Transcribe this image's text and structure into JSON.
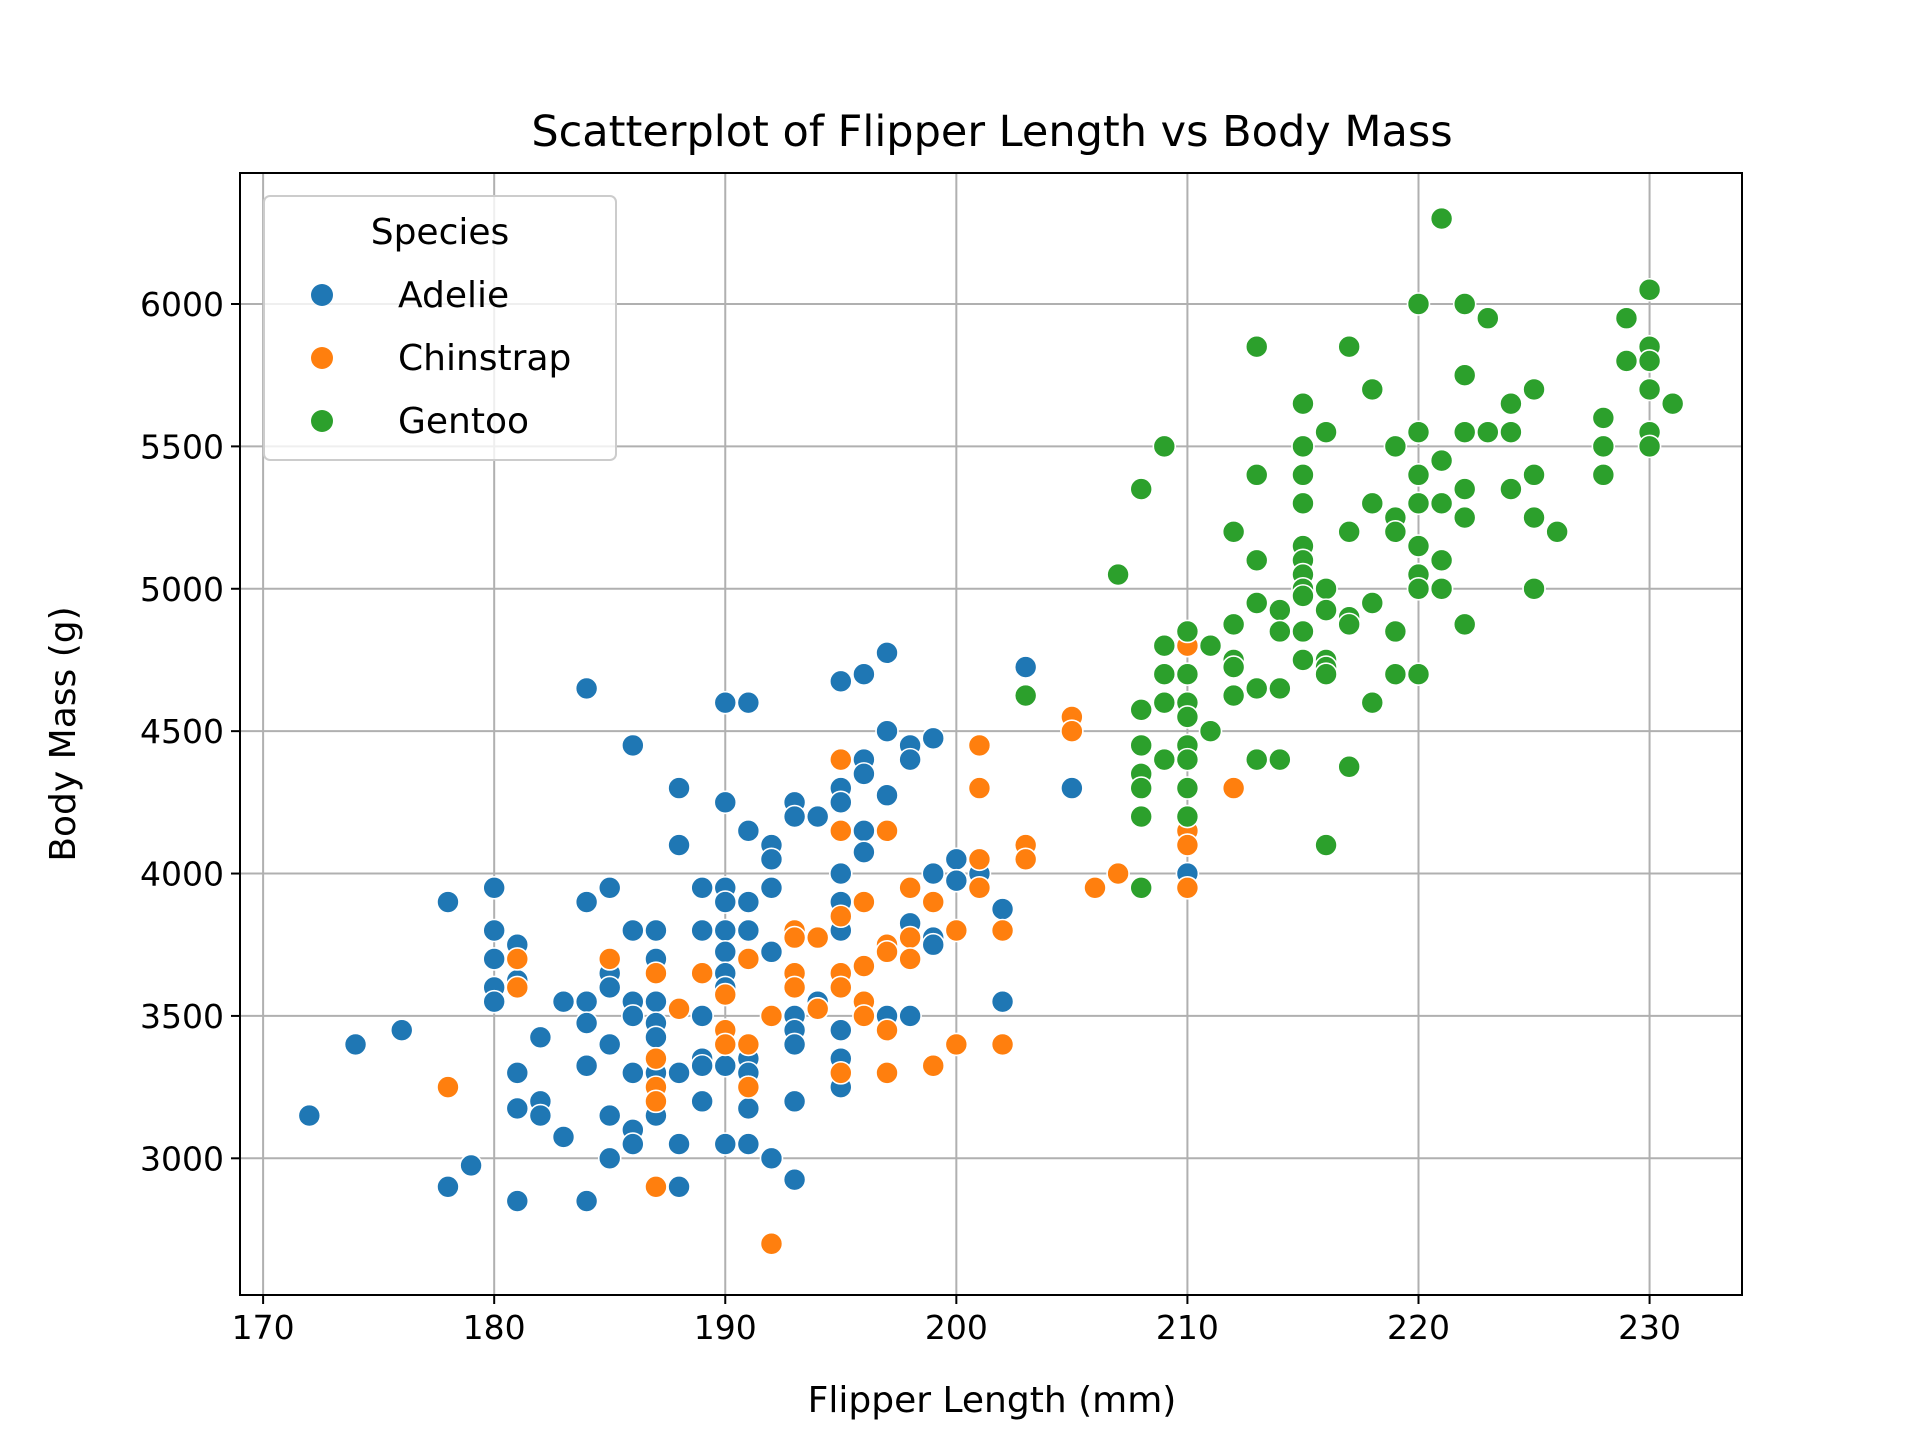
{
  "chart_data": {
    "type": "scatter",
    "title": "Scatterplot of Flipper Length vs Body Mass",
    "xlabel": "Flipper Length (mm)",
    "ylabel": "Body Mass (g)",
    "xlim": [
      169,
      234
    ],
    "ylim": [
      2520,
      6460
    ],
    "xticks": [
      170,
      180,
      190,
      200,
      210,
      220,
      230
    ],
    "yticks": [
      3000,
      3500,
      4000,
      4500,
      5000,
      5500,
      6000
    ],
    "xtick_labels": [
      "170",
      "180",
      "190",
      "200",
      "210",
      "220",
      "230"
    ],
    "ytick_labels": [
      "3000",
      "3500",
      "4000",
      "4500",
      "5000",
      "5500",
      "6000"
    ],
    "grid": true,
    "legend": {
      "title": "Species",
      "placement": "top-left"
    },
    "series": [
      {
        "name": "Adelie",
        "color": "#1f77b4",
        "points": [
          [
            172,
            3150
          ],
          [
            174,
            3400
          ],
          [
            176,
            3450
          ],
          [
            178,
            3900
          ],
          [
            178,
            2900
          ],
          [
            179,
            2975
          ],
          [
            180,
            3950
          ],
          [
            180,
            3800
          ],
          [
            180,
            3700
          ],
          [
            180,
            3600
          ],
          [
            180,
            3550
          ],
          [
            181,
            3750
          ],
          [
            181,
            3625
          ],
          [
            181,
            3300
          ],
          [
            181,
            3175
          ],
          [
            181,
            2850
          ],
          [
            182,
            3425
          ],
          [
            182,
            3200
          ],
          [
            182,
            3150
          ],
          [
            183,
            3550
          ],
          [
            183,
            3075
          ],
          [
            184,
            4650
          ],
          [
            184,
            3900
          ],
          [
            184,
            3550
          ],
          [
            184,
            3475
          ],
          [
            184,
            3325
          ],
          [
            184,
            2850
          ],
          [
            185,
            3950
          ],
          [
            185,
            3650
          ],
          [
            185,
            3600
          ],
          [
            185,
            3400
          ],
          [
            185,
            3150
          ],
          [
            185,
            3000
          ],
          [
            186,
            4450
          ],
          [
            186,
            3800
          ],
          [
            186,
            3550
          ],
          [
            186,
            3500
          ],
          [
            186,
            3300
          ],
          [
            186,
            3100
          ],
          [
            186,
            3050
          ],
          [
            187,
            3800
          ],
          [
            187,
            3700
          ],
          [
            187,
            3550
          ],
          [
            187,
            3475
          ],
          [
            187,
            3425
          ],
          [
            187,
            3300
          ],
          [
            187,
            3150
          ],
          [
            188,
            4300
          ],
          [
            188,
            4100
          ],
          [
            188,
            3300
          ],
          [
            188,
            3050
          ],
          [
            188,
            2900
          ],
          [
            189,
            3950
          ],
          [
            189,
            3800
          ],
          [
            189,
            3500
          ],
          [
            189,
            3350
          ],
          [
            189,
            3325
          ],
          [
            189,
            3200
          ],
          [
            190,
            4600
          ],
          [
            190,
            4250
          ],
          [
            190,
            3950
          ],
          [
            190,
            3900
          ],
          [
            190,
            3800
          ],
          [
            190,
            3725
          ],
          [
            190,
            3650
          ],
          [
            190,
            3600
          ],
          [
            190,
            3450
          ],
          [
            190,
            3325
          ],
          [
            190,
            3050
          ],
          [
            191,
            4600
          ],
          [
            191,
            4150
          ],
          [
            191,
            3900
          ],
          [
            191,
            3800
          ],
          [
            191,
            3700
          ],
          [
            191,
            3350
          ],
          [
            191,
            3300
          ],
          [
            191,
            3250
          ],
          [
            191,
            3175
          ],
          [
            191,
            3050
          ],
          [
            192,
            4100
          ],
          [
            192,
            4050
          ],
          [
            192,
            3950
          ],
          [
            192,
            3725
          ],
          [
            192,
            3000
          ],
          [
            193,
            4250
          ],
          [
            193,
            4200
          ],
          [
            193,
            3775
          ],
          [
            193,
            3500
          ],
          [
            193,
            3450
          ],
          [
            193,
            3400
          ],
          [
            193,
            3200
          ],
          [
            193,
            2925
          ],
          [
            194,
            4200
          ],
          [
            194,
            3550
          ],
          [
            194,
            3525
          ],
          [
            195,
            4675
          ],
          [
            195,
            4300
          ],
          [
            195,
            4250
          ],
          [
            195,
            4000
          ],
          [
            195,
            3900
          ],
          [
            195,
            3800
          ],
          [
            195,
            3450
          ],
          [
            195,
            3350
          ],
          [
            195,
            3300
          ],
          [
            195,
            3250
          ],
          [
            196,
            4700
          ],
          [
            196,
            4400
          ],
          [
            196,
            4350
          ],
          [
            196,
            4150
          ],
          [
            196,
            4075
          ],
          [
            197,
            4775
          ],
          [
            197,
            4500
          ],
          [
            197,
            4275
          ],
          [
            197,
            3500
          ],
          [
            198,
            4450
          ],
          [
            198,
            4400
          ],
          [
            198,
            3825
          ],
          [
            198,
            3500
          ],
          [
            199,
            4475
          ],
          [
            199,
            4000
          ],
          [
            199,
            3775
          ],
          [
            199,
            3750
          ],
          [
            200,
            4050
          ],
          [
            200,
            3975
          ],
          [
            201,
            4000
          ],
          [
            202,
            3875
          ],
          [
            202,
            3550
          ],
          [
            203,
            4725
          ],
          [
            205,
            4300
          ],
          [
            210,
            4000
          ]
        ]
      },
      {
        "name": "Chinstrap",
        "color": "#ff7f0e",
        "points": [
          [
            178,
            3250
          ],
          [
            181,
            3700
          ],
          [
            181,
            3600
          ],
          [
            185,
            3700
          ],
          [
            187,
            3650
          ],
          [
            187,
            3350
          ],
          [
            187,
            3250
          ],
          [
            187,
            3200
          ],
          [
            187,
            2900
          ],
          [
            188,
            3525
          ],
          [
            189,
            3650
          ],
          [
            190,
            3575
          ],
          [
            190,
            3450
          ],
          [
            190,
            3400
          ],
          [
            191,
            3700
          ],
          [
            191,
            3400
          ],
          [
            191,
            3250
          ],
          [
            192,
            3500
          ],
          [
            192,
            2700
          ],
          [
            193,
            3800
          ],
          [
            193,
            3775
          ],
          [
            193,
            3650
          ],
          [
            193,
            3600
          ],
          [
            194,
            3775
          ],
          [
            194,
            3525
          ],
          [
            195,
            4400
          ],
          [
            195,
            4150
          ],
          [
            195,
            3850
          ],
          [
            195,
            3650
          ],
          [
            195,
            3600
          ],
          [
            195,
            3300
          ],
          [
            196,
            3900
          ],
          [
            196,
            3675
          ],
          [
            196,
            3550
          ],
          [
            196,
            3500
          ],
          [
            197,
            4150
          ],
          [
            197,
            3750
          ],
          [
            197,
            3725
          ],
          [
            197,
            3450
          ],
          [
            197,
            3300
          ],
          [
            198,
            3950
          ],
          [
            198,
            3775
          ],
          [
            198,
            3700
          ],
          [
            199,
            3900
          ],
          [
            199,
            3325
          ],
          [
            200,
            3800
          ],
          [
            200,
            3400
          ],
          [
            201,
            4450
          ],
          [
            201,
            4300
          ],
          [
            201,
            4050
          ],
          [
            201,
            3950
          ],
          [
            202,
            3800
          ],
          [
            202,
            3400
          ],
          [
            203,
            4100
          ],
          [
            203,
            4050
          ],
          [
            205,
            4550
          ],
          [
            205,
            4500
          ],
          [
            206,
            3950
          ],
          [
            207,
            4000
          ],
          [
            210,
            4800
          ],
          [
            210,
            4150
          ],
          [
            210,
            4100
          ],
          [
            210,
            3950
          ],
          [
            212,
            4300
          ]
        ]
      },
      {
        "name": "Gentoo",
        "color": "#2ca02c",
        "points": [
          [
            203,
            4625
          ],
          [
            207,
            5050
          ],
          [
            208,
            5350
          ],
          [
            208,
            4575
          ],
          [
            208,
            4450
          ],
          [
            208,
            4350
          ],
          [
            208,
            4300
          ],
          [
            208,
            4200
          ],
          [
            208,
            3950
          ],
          [
            209,
            5500
          ],
          [
            209,
            4800
          ],
          [
            209,
            4700
          ],
          [
            209,
            4600
          ],
          [
            209,
            4400
          ],
          [
            210,
            4850
          ],
          [
            210,
            4700
          ],
          [
            210,
            4600
          ],
          [
            210,
            4550
          ],
          [
            210,
            4450
          ],
          [
            210,
            4400
          ],
          [
            210,
            4300
          ],
          [
            210,
            4200
          ],
          [
            211,
            4800
          ],
          [
            211,
            4500
          ],
          [
            212,
            5200
          ],
          [
            212,
            4875
          ],
          [
            212,
            4750
          ],
          [
            212,
            4725
          ],
          [
            212,
            4625
          ],
          [
            213,
            5850
          ],
          [
            213,
            5400
          ],
          [
            213,
            5100
          ],
          [
            213,
            4950
          ],
          [
            213,
            4650
          ],
          [
            213,
            4400
          ],
          [
            214,
            4925
          ],
          [
            214,
            4850
          ],
          [
            214,
            4650
          ],
          [
            214,
            4400
          ],
          [
            215,
            5650
          ],
          [
            215,
            5500
          ],
          [
            215,
            5400
          ],
          [
            215,
            5300
          ],
          [
            215,
            5150
          ],
          [
            215,
            5100
          ],
          [
            215,
            5050
          ],
          [
            215,
            5000
          ],
          [
            215,
            4975
          ],
          [
            215,
            4850
          ],
          [
            215,
            4750
          ],
          [
            216,
            5550
          ],
          [
            216,
            5000
          ],
          [
            216,
            4925
          ],
          [
            216,
            4750
          ],
          [
            216,
            4725
          ],
          [
            216,
            4700
          ],
          [
            216,
            4100
          ],
          [
            217,
            5850
          ],
          [
            217,
            5200
          ],
          [
            217,
            4900
          ],
          [
            217,
            4875
          ],
          [
            217,
            4375
          ],
          [
            218,
            5700
          ],
          [
            218,
            5300
          ],
          [
            218,
            4950
          ],
          [
            218,
            4600
          ],
          [
            219,
            5500
          ],
          [
            219,
            5250
          ],
          [
            219,
            5200
          ],
          [
            219,
            4850
          ],
          [
            219,
            4700
          ],
          [
            220,
            6000
          ],
          [
            220,
            5550
          ],
          [
            220,
            5400
          ],
          [
            220,
            5300
          ],
          [
            220,
            5150
          ],
          [
            220,
            5050
          ],
          [
            220,
            5000
          ],
          [
            220,
            4700
          ],
          [
            221,
            6300
          ],
          [
            221,
            5450
          ],
          [
            221,
            5300
          ],
          [
            221,
            5100
          ],
          [
            221,
            5000
          ],
          [
            222,
            6000
          ],
          [
            222,
            5750
          ],
          [
            222,
            5550
          ],
          [
            222,
            5350
          ],
          [
            222,
            5250
          ],
          [
            222,
            4875
          ],
          [
            223,
            5950
          ],
          [
            223,
            5550
          ],
          [
            224,
            5650
          ],
          [
            224,
            5550
          ],
          [
            224,
            5350
          ],
          [
            225,
            5700
          ],
          [
            225,
            5400
          ],
          [
            225,
            5250
          ],
          [
            225,
            5000
          ],
          [
            226,
            5200
          ],
          [
            228,
            5600
          ],
          [
            228,
            5500
          ],
          [
            228,
            5400
          ],
          [
            229,
            5950
          ],
          [
            229,
            5800
          ],
          [
            230,
            6050
          ],
          [
            230,
            5850
          ],
          [
            230,
            5800
          ],
          [
            230,
            5700
          ],
          [
            230,
            5550
          ],
          [
            230,
            5500
          ],
          [
            231,
            5650
          ]
        ]
      }
    ]
  }
}
